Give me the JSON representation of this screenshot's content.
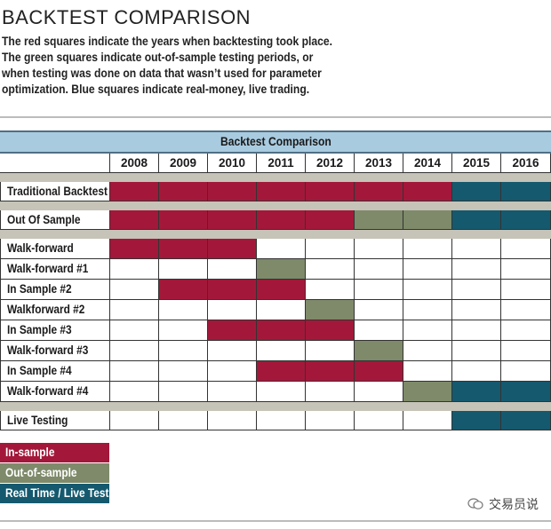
{
  "page": {
    "title": "BACKTEST COMPARISON",
    "description": "The red squares indicate the years when backtesting took place. The green squares indicate out-of-sample testing periods, or when testing was done on data that wasn’t used for parameter optimization. Blue squares indicate real-money, live trading.",
    "watermark": "交易员说"
  },
  "colors": {
    "in_sample": "#a3183a",
    "out_of_sample": "#7e8a6a",
    "live": "#15596e",
    "empty": "#ffffff"
  },
  "chart_data": {
    "type": "table",
    "title": "Backtest Comparison",
    "years": [
      "2008",
      "2009",
      "2010",
      "2011",
      "2012",
      "2013",
      "2014",
      "2015",
      "2016"
    ],
    "groups": [
      {
        "rows": [
          {
            "label": "Traditional Backtest",
            "cells": [
              "I",
              "I",
              "I",
              "I",
              "I",
              "I",
              "I",
              "L",
              "L"
            ]
          }
        ]
      },
      {
        "rows": [
          {
            "label": "Out Of Sample",
            "cells": [
              "I",
              "I",
              "I",
              "I",
              "I",
              "O",
              "O",
              "L",
              "L"
            ]
          }
        ]
      },
      {
        "rows": [
          {
            "label": "Walk-forward",
            "cells": [
              "I",
              "I",
              "I",
              "",
              "",
              "",
              "",
              "",
              ""
            ]
          },
          {
            "label": "Walk-forward #1",
            "cells": [
              "",
              "",
              "",
              "O",
              "",
              "",
              "",
              "",
              ""
            ]
          },
          {
            "label": "In Sample #2",
            "cells": [
              "",
              "I",
              "I",
              "I",
              "",
              "",
              "",
              "",
              ""
            ]
          },
          {
            "label": "Walkforward #2",
            "cells": [
              "",
              "",
              "",
              "",
              "O",
              "",
              "",
              "",
              ""
            ]
          },
          {
            "label": "In Sample #3",
            "cells": [
              "",
              "",
              "I",
              "I",
              "I",
              "",
              "",
              "",
              ""
            ]
          },
          {
            "label": "Walk-forward #3",
            "cells": [
              "",
              "",
              "",
              "",
              "",
              "O",
              "",
              "",
              ""
            ]
          },
          {
            "label": "In Sample #4",
            "cells": [
              "",
              "",
              "",
              "I",
              "I",
              "I",
              "",
              "",
              ""
            ]
          },
          {
            "label": "Walk-forward #4",
            "cells": [
              "",
              "",
              "",
              "",
              "",
              "",
              "O",
              "L",
              "L"
            ]
          }
        ]
      },
      {
        "rows": [
          {
            "label": "Live Testing",
            "cells": [
              "",
              "",
              "",
              "",
              "",
              "",
              "",
              "L",
              "L"
            ]
          }
        ]
      }
    ],
    "legend": [
      {
        "key": "I",
        "label": "In-sample"
      },
      {
        "key": "O",
        "label": "Out-of-sample"
      },
      {
        "key": "L",
        "label": "Real Time / Live Test"
      }
    ]
  }
}
